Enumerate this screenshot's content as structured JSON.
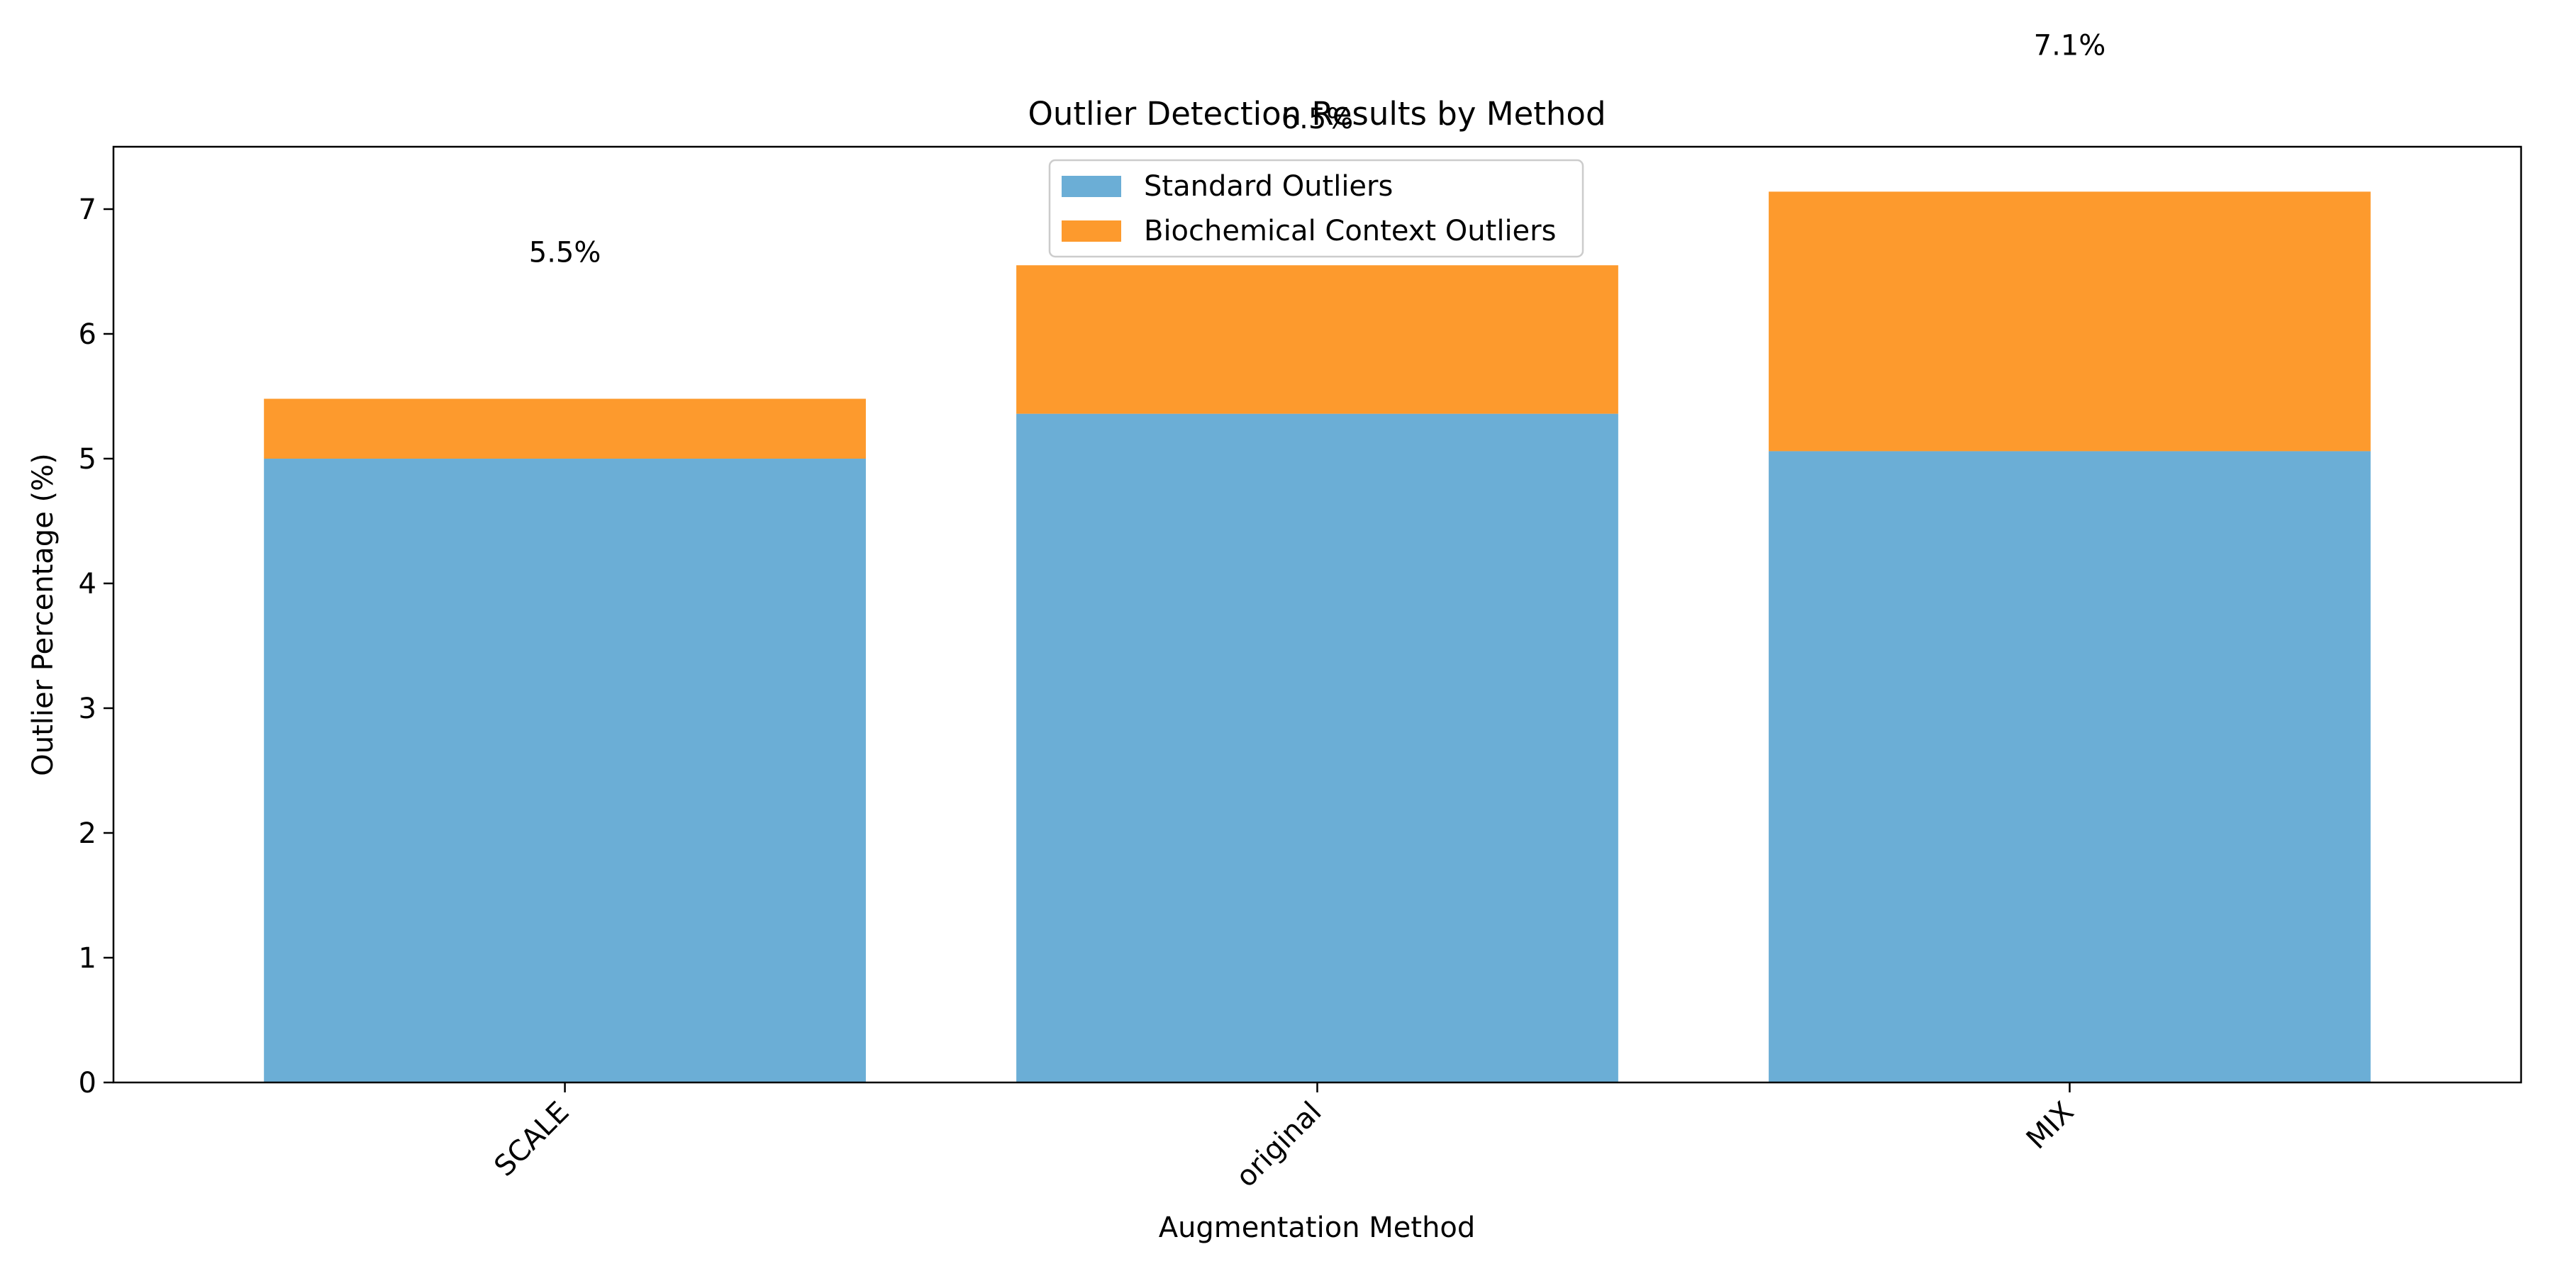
{
  "chart_data": {
    "type": "bar",
    "stacked": true,
    "title": "Outlier Detection Results by Method",
    "xlabel": "Augmentation Method",
    "ylabel": "Outlier Percentage (%)",
    "categories": [
      "SCALE",
      "original",
      "MIX"
    ],
    "series": [
      {
        "name": "Standard Outliers",
        "values": [
          5.0,
          5.36,
          5.06
        ],
        "color": "#6baed6"
      },
      {
        "name": "Biochemical Context Outliers",
        "values": [
          0.48,
          1.19,
          2.08
        ],
        "color": "#fd9a2d"
      }
    ],
    "total_labels": [
      "5.5%",
      "6.5%",
      "7.1%"
    ],
    "ylim": [
      0,
      7.5
    ],
    "yticks": [
      "0",
      "1",
      "2",
      "3",
      "4",
      "5",
      "6",
      "7"
    ],
    "grid": false,
    "legend_position": "top-center"
  }
}
